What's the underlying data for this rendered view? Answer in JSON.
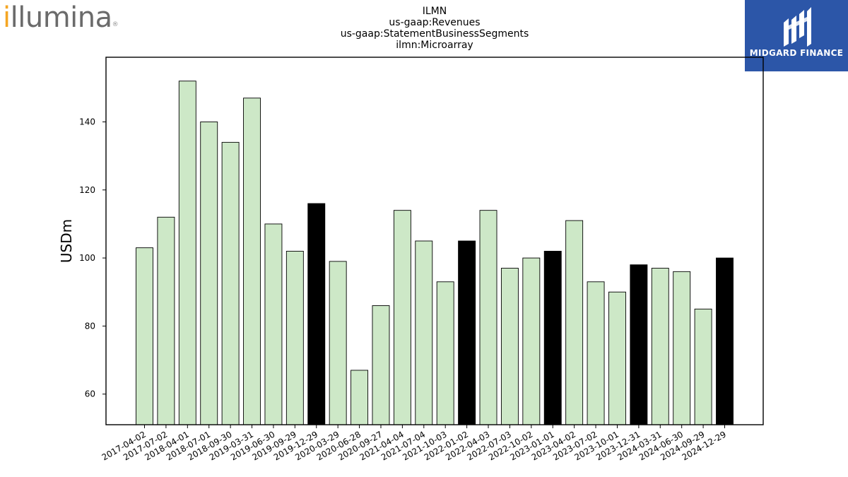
{
  "logos": {
    "left_text": "illumina",
    "right_text": "MIDGARD FINANCE"
  },
  "colors": {
    "bar_default": "#cde8c7",
    "bar_highlight": "#000000",
    "brand_blue": "#2c56a8",
    "logo_orange": "#f5a623"
  },
  "chart_data": {
    "type": "bar",
    "title_lines": [
      "ILMN",
      "us-gaap:Revenues",
      "us-gaap:StatementBusinessSegments",
      "ilmn:Microarray"
    ],
    "xlabel": "",
    "ylabel": "USDm",
    "ylim": [
      51,
      159
    ],
    "yticks": [
      60,
      80,
      100,
      120,
      140
    ],
    "grid": false,
    "categories": [
      "2017-04-02",
      "2017-07-02",
      "2018-04-01",
      "2018-07-01",
      "2018-09-30",
      "2019-03-31",
      "2019-06-30",
      "2019-09-29",
      "2019-12-29",
      "2020-03-29",
      "2020-06-28",
      "2020-09-27",
      "2021-04-04",
      "2021-07-04",
      "2021-10-03",
      "2022-01-02",
      "2022-04-03",
      "2022-07-03",
      "2022-10-02",
      "2023-01-01",
      "2023-04-02",
      "2023-07-02",
      "2023-10-01",
      "2023-12-31",
      "2024-03-31",
      "2024-06-30",
      "2024-09-29",
      "2024-12-29"
    ],
    "values": [
      103,
      112,
      152,
      140,
      134,
      147,
      110,
      102,
      116,
      99,
      67,
      86,
      114,
      105,
      93,
      105,
      114,
      97,
      100,
      102,
      111,
      93,
      90,
      98,
      97,
      96,
      85,
      100
    ],
    "highlight": [
      false,
      false,
      false,
      false,
      false,
      false,
      false,
      false,
      true,
      false,
      false,
      false,
      false,
      false,
      false,
      true,
      false,
      false,
      false,
      true,
      false,
      false,
      false,
      true,
      false,
      false,
      false,
      true
    ]
  }
}
